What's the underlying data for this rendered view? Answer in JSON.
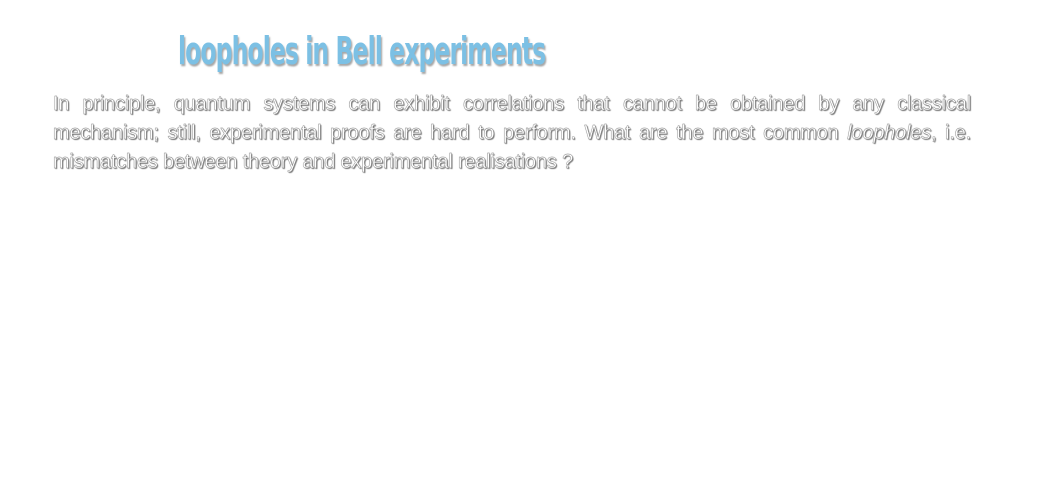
{
  "title": "loopholes in Bell experiments",
  "intro": {
    "before_term": "In principle, quantum systems can exhibit correlations that cannot be obtained by any classical mechanism; still, experimental proofs are hard to perform. What are the most common ",
    "term": "loopholes",
    "after_term": ", i.e. mismatches between theory and experimental realisations ?"
  },
  "colors": {
    "title": "#7cc0e4",
    "text_fill": "#ffffff",
    "text_outline": "#8a8a8a",
    "background": "#ffffff"
  }
}
